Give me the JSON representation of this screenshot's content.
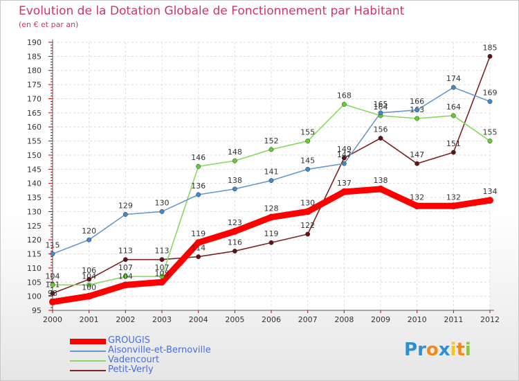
{
  "header": {
    "title": "Evolution de la Dotation Globale de Fonctionnement par Habitant",
    "subtitle": "(en € et par an)"
  },
  "logo": {
    "text": "Proxiti",
    "letters": [
      "P",
      "r",
      "o",
      "x",
      "i",
      "t",
      "i"
    ],
    "colors": [
      "#2f8fd0",
      "#2f8fd0",
      "#f08a1c",
      "#2f8fd0",
      "#f0c81c",
      "#f08a1c",
      "#8cc63e"
    ]
  },
  "chart_data": {
    "type": "line",
    "x": [
      "2000",
      "2001",
      "2002",
      "2003",
      "2004",
      "2005",
      "2006",
      "2007",
      "2008",
      "2009",
      "2010",
      "2011",
      "2012"
    ],
    "ylim": [
      95,
      190
    ],
    "yticks": [
      95,
      100,
      105,
      110,
      115,
      120,
      125,
      130,
      135,
      140,
      145,
      150,
      155,
      160,
      165,
      170,
      175,
      180,
      185,
      190
    ],
    "grid": true,
    "legend_position": "bottom-left",
    "series": [
      {
        "name": "GROUGIS",
        "color": "#ff0000",
        "marker": "#ff0000",
        "bold": true,
        "values": [
          98,
          100,
          104,
          105,
          119,
          123,
          128,
          130,
          137,
          138,
          132,
          132,
          134
        ]
      },
      {
        "name": "Aisonville-et-Bernoville",
        "color": "#6699cc",
        "marker": "#4488cc",
        "values": [
          115,
          120,
          129,
          130,
          136,
          138,
          141,
          145,
          147,
          165,
          166,
          174,
          169
        ]
      },
      {
        "name": "Vadencourt",
        "color": "#88d860",
        "marker": "#66cc33",
        "values": [
          104,
          104,
          107,
          107,
          146,
          148,
          152,
          155,
          168,
          164,
          163,
          164,
          155
        ]
      },
      {
        "name": "Petit-Verly",
        "color": "#7a2222",
        "marker": "#661111",
        "values": [
          101,
          106,
          113,
          113,
          114,
          116,
          119,
          122,
          149,
          156,
          147,
          151,
          185
        ]
      }
    ],
    "value_labels": [
      [
        "98",
        "100",
        "104",
        "105",
        "119",
        "123",
        "128",
        "130",
        "137",
        "138",
        "132",
        "132",
        "134"
      ],
      [
        "115",
        "120",
        "129",
        "130",
        "136",
        "138",
        "141",
        "145",
        "147",
        "165",
        "166",
        "174",
        "169"
      ],
      [
        "104",
        "104",
        "107",
        "107",
        "146",
        "148",
        "152",
        "155",
        "168",
        "164",
        "163",
        "164",
        "155"
      ],
      [
        "101",
        "106",
        "113",
        "113",
        "114",
        "116",
        "119",
        "122",
        "149",
        "156",
        "147",
        "151",
        "185"
      ]
    ]
  }
}
